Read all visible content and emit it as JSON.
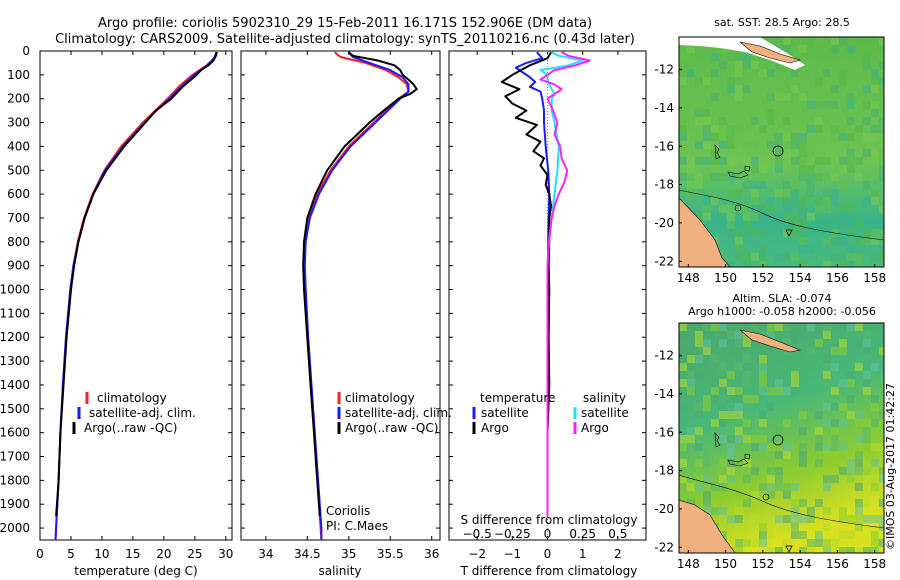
{
  "header": {
    "line1": "Argo profile: coriolis 5902310_29 15-Feb-2011 16.171S 152.906E (DM data)",
    "line2": "Climatology: CARS2009. Satellite-adjusted climatology: synTS_20110216.nc (0.43d later)"
  },
  "colors": {
    "climatology": "#ff2020",
    "satellite": "#1a1aff",
    "argo": "#000000",
    "sat_salinity": "#20e0ff",
    "argo_salinity": "#ff20ff",
    "land": "#f0b080"
  },
  "chart_data": [
    {
      "type": "line",
      "id": "temperature",
      "xlabel": "temperature (deg C)",
      "ylabel": "",
      "xlim": [
        0,
        31
      ],
      "ylim": [
        0,
        2050
      ],
      "x_ticks": [
        0,
        5,
        10,
        15,
        20,
        25,
        30
      ],
      "x_tick_labels": [
        "0",
        "5",
        "10",
        "15",
        "20",
        "25",
        "30"
      ],
      "y_ticks": [
        0,
        100,
        200,
        300,
        400,
        500,
        600,
        700,
        800,
        900,
        1000,
        1100,
        1200,
        1300,
        1400,
        1500,
        1600,
        1700,
        1800,
        1900,
        2000
      ],
      "y_tick_labels": [
        "0",
        "100",
        "200",
        "300",
        "400",
        "500",
        "600",
        "700",
        "800",
        "900",
        "1000",
        "1100",
        "1200",
        "1300",
        "1400",
        "1500",
        "1600",
        "1700",
        "1800",
        "1900",
        "2000"
      ],
      "legend": [
        "climatology",
        "satellite-adj. clim.",
        "Argo(..raw -QC)"
      ],
      "series": [
        {
          "name": "climatology",
          "depth": [
            5,
            30,
            60,
            100,
            150,
            200,
            250,
            300,
            400,
            500,
            600,
            700,
            800,
            900,
            1000,
            1200,
            1400,
            1600,
            1800,
            2000,
            2050
          ],
          "values": [
            28.6,
            28.2,
            26.9,
            24.6,
            22.4,
            20.6,
            18.6,
            16.6,
            13.1,
            10.4,
            8.5,
            7.1,
            6.1,
            5.4,
            4.9,
            4.2,
            3.7,
            3.3,
            3.0,
            2.6,
            2.5
          ]
        },
        {
          "name": "satellite-adj. clim.",
          "depth": [
            5,
            30,
            60,
            100,
            150,
            200,
            250,
            300,
            400,
            500,
            600,
            700,
            800,
            900,
            1000,
            1200,
            1400,
            1600,
            1800,
            2000,
            2050
          ],
          "values": [
            28.5,
            28.1,
            27.0,
            24.9,
            22.8,
            20.9,
            18.8,
            16.9,
            13.4,
            10.5,
            8.6,
            7.2,
            6.2,
            5.4,
            4.9,
            4.2,
            3.7,
            3.3,
            3.0,
            2.6,
            2.5
          ]
        },
        {
          "name": "Argo(..raw -QC)",
          "depth": [
            5,
            20,
            40,
            60,
            80,
            100,
            150,
            200,
            250,
            300,
            350,
            400,
            500,
            600,
            700,
            800,
            900,
            1000,
            1200,
            1400,
            1600,
            1800,
            1950
          ],
          "values": [
            28.5,
            28.4,
            28.0,
            27.2,
            26.0,
            25.3,
            23.0,
            21.2,
            18.7,
            17.0,
            15.3,
            13.6,
            10.7,
            8.6,
            7.2,
            6.2,
            5.5,
            5.0,
            4.3,
            3.8,
            3.3,
            3.0,
            2.6
          ]
        }
      ]
    },
    {
      "type": "line",
      "id": "salinity",
      "xlabel": "salinity",
      "xlim": [
        33.7,
        36.1
      ],
      "ylim": [
        0,
        2050
      ],
      "x_ticks": [
        34,
        34.5,
        35,
        35.5,
        36
      ],
      "x_tick_labels": [
        "34",
        "34.5",
        "35",
        "35.5",
        "36"
      ],
      "legend": [
        "climatology",
        "satellite-adj. clim.",
        "Argo(..raw -QC)"
      ],
      "annotation_line1": "Coriolis",
      "annotation_line2": "PI: C.Maes",
      "series": [
        {
          "name": "climatology",
          "depth": [
            5,
            25,
            50,
            80,
            110,
            140,
            170,
            200,
            250,
            300,
            350,
            400,
            500,
            600,
            700,
            800,
            900,
            1000,
            1200,
            1400,
            1600,
            1800,
            2000,
            2050
          ],
          "values": [
            34.83,
            34.9,
            35.2,
            35.45,
            35.6,
            35.7,
            35.72,
            35.6,
            35.45,
            35.3,
            35.15,
            35.0,
            34.78,
            34.62,
            34.52,
            34.47,
            34.46,
            34.47,
            34.5,
            34.54,
            34.58,
            34.62,
            34.66,
            34.67
          ]
        },
        {
          "name": "satellite-adj. clim.",
          "depth": [
            5,
            25,
            50,
            80,
            110,
            140,
            170,
            200,
            250,
            300,
            350,
            400,
            500,
            600,
            700,
            800,
            900,
            1000,
            1200,
            1400,
            1600,
            1800,
            2000,
            2050
          ],
          "values": [
            35.0,
            35.05,
            35.25,
            35.5,
            35.65,
            35.72,
            35.72,
            35.62,
            35.47,
            35.32,
            35.17,
            35.02,
            34.8,
            34.64,
            34.53,
            34.48,
            34.47,
            34.48,
            34.51,
            34.55,
            34.59,
            34.63,
            34.67,
            34.67
          ]
        },
        {
          "name": "Argo(..raw -QC)",
          "depth": [
            5,
            20,
            40,
            60,
            80,
            100,
            120,
            140,
            160,
            180,
            200,
            250,
            300,
            350,
            400,
            500,
            600,
            700,
            800,
            900,
            1000,
            1200,
            1400,
            1600,
            1800,
            1950
          ],
          "values": [
            35.0,
            35.05,
            35.35,
            35.55,
            35.62,
            35.65,
            35.72,
            35.78,
            35.82,
            35.74,
            35.6,
            35.42,
            35.25,
            35.1,
            34.95,
            34.74,
            34.6,
            34.5,
            34.46,
            34.45,
            34.46,
            34.5,
            34.54,
            34.58,
            34.62,
            34.65
          ]
        }
      ]
    },
    {
      "type": "line",
      "id": "difference",
      "xlabel": "T difference from climatology",
      "xlabel_top": "S difference from climatology",
      "xlim": [
        -2.8,
        2.8
      ],
      "ylim": [
        0,
        2050
      ],
      "x_ticks": [
        -2,
        -1,
        0,
        1,
        2
      ],
      "x_tick_labels": [
        "−2",
        "−1",
        "0",
        "1",
        "2"
      ],
      "s_ticks": [
        -0.5,
        -0.25,
        0,
        0.25,
        0.5
      ],
      "s_tick_labels": [
        "−0.5",
        "−0.25",
        "0",
        "0.25",
        "0.5"
      ],
      "legend_temperature_title": "temperature",
      "legend_salinity_title": "salinity",
      "legend_labels": [
        "satellite",
        "Argo",
        "satellite",
        "Argo"
      ],
      "series": [
        {
          "name": "temperature satellite",
          "depth": [
            5,
            30,
            50,
            70,
            90,
            110,
            130,
            150,
            170,
            200,
            250,
            300,
            400,
            500,
            600,
            700,
            800,
            900,
            1000,
            1200,
            1400,
            1600,
            1800,
            1900
          ],
          "values": [
            -0.3,
            -0.15,
            -0.6,
            -0.9,
            -0.7,
            -0.5,
            -0.35,
            -0.5,
            -0.2,
            -0.15,
            -0.1,
            -0.1,
            -0.05,
            0.02,
            0.05,
            0.03,
            0.02,
            0.01,
            0.0,
            0.0,
            0.0,
            0.0,
            0.0,
            0.0
          ]
        },
        {
          "name": "temperature Argo",
          "depth": [
            5,
            30,
            60,
            100,
            130,
            160,
            190,
            220,
            250,
            280,
            310,
            350,
            380,
            420,
            450,
            480,
            520,
            560,
            600,
            650,
            700,
            800,
            900,
            1000,
            1200,
            1400,
            1600,
            1800,
            1950
          ],
          "values": [
            0.1,
            0.0,
            -0.5,
            -1.0,
            -1.3,
            -0.8,
            -1.2,
            -1.0,
            -0.6,
            -0.9,
            -0.3,
            -0.6,
            -0.2,
            -0.4,
            -0.1,
            -0.2,
            0.0,
            -0.05,
            0.05,
            0.1,
            0.05,
            0.05,
            0.03,
            0.05,
            0.03,
            0.05,
            0.0,
            0.0,
            0.0
          ]
        },
        {
          "name": "salinity satellite",
          "depth": [
            5,
            20,
            40,
            60,
            80,
            100,
            120,
            150,
            180,
            200,
            250,
            300,
            400,
            500,
            600,
            700,
            800,
            900,
            1000,
            1200,
            1400,
            1600,
            1800,
            1950
          ],
          "values": [
            0.03,
            0.08,
            0.25,
            0.15,
            -0.05,
            0.0,
            0.0,
            0.02,
            0.05,
            0.03,
            0.03,
            0.05,
            0.08,
            0.07,
            0.05,
            0.03,
            0.01,
            0.0,
            0.0,
            0.0,
            0.0,
            0.0,
            0.0,
            0.0
          ]
        },
        {
          "name": "salinity Argo",
          "depth": [
            5,
            20,
            40,
            60,
            80,
            100,
            120,
            140,
            160,
            180,
            200,
            250,
            300,
            350,
            400,
            450,
            500,
            550,
            600,
            650,
            700,
            800,
            900,
            1000,
            1200,
            1400,
            1600,
            1800,
            1950
          ],
          "values": [
            0.1,
            0.15,
            0.3,
            0.2,
            0.05,
            0.0,
            -0.05,
            0.05,
            0.1,
            0.05,
            0.0,
            0.04,
            0.07,
            0.05,
            0.09,
            0.1,
            0.14,
            0.12,
            0.08,
            0.05,
            0.03,
            0.01,
            0.0,
            0.0,
            0.0,
            0.0,
            0.0,
            0.0,
            0.0
          ]
        }
      ]
    },
    {
      "type": "heatmap",
      "id": "sst-map",
      "title": "sat. SST: 28.5 Argo: 28.5",
      "xlim": [
        147.5,
        158.5
      ],
      "ylim": [
        -22.3,
        -10.3
      ],
      "x_ticks": [
        148,
        150,
        152,
        154,
        156,
        158
      ],
      "x_tick_labels": [
        "148",
        "150",
        "152",
        "154",
        "156",
        "158"
      ],
      "y_ticks": [
        -12,
        -14,
        -16,
        -18,
        -20,
        -22
      ],
      "y_tick_labels": [
        "-12",
        "-14",
        "-16",
        "-18",
        "-20",
        "-22"
      ],
      "argo_position": [
        152.906,
        -16.171
      ]
    },
    {
      "type": "heatmap",
      "id": "sla-map",
      "title_line1": "Altim. SLA: -0.074",
      "title_line2": "Argo h1000: -0.058 h2000: -0.056",
      "xlim": [
        147.5,
        158.5
      ],
      "ylim": [
        -22.3,
        -10.3
      ],
      "x_ticks": [
        148,
        150,
        152,
        154,
        156,
        158
      ],
      "x_tick_labels": [
        "148",
        "150",
        "152",
        "154",
        "156",
        "158"
      ],
      "y_ticks": [
        -12,
        -14,
        -16,
        -18,
        -20,
        -22
      ],
      "y_tick_labels": [
        "-12",
        "-14",
        "-16",
        "-18",
        "-20",
        "-22"
      ],
      "argo_position": [
        152.906,
        -16.171
      ]
    }
  ],
  "footer": {
    "credit": "©IMOS 03-Aug-2017 01:42:27"
  }
}
